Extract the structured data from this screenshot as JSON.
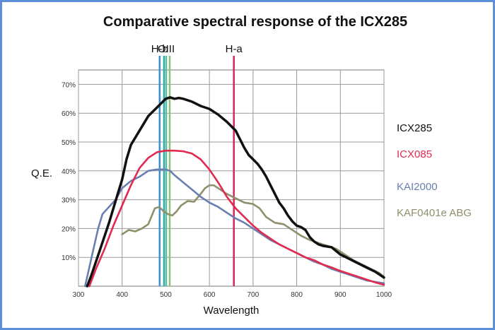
{
  "chart_data": {
    "type": "line",
    "title": "Comparative spectral response of the ICX285",
    "xlabel": "Wavelength",
    "ylabel": "Q.E.",
    "xlim": [
      300,
      1000
    ],
    "ylim": [
      0,
      75
    ],
    "x_ticks": [
      300,
      400,
      500,
      600,
      700,
      800,
      900,
      1000
    ],
    "x_tick_labels": [
      "300",
      "400",
      "500",
      "600",
      "700",
      "800",
      "900",
      "1000"
    ],
    "y_ticks": [
      10,
      20,
      30,
      40,
      50,
      60,
      70
    ],
    "y_tick_labels": [
      "10%",
      "20%",
      "30%",
      "40%",
      "50%",
      "60%",
      "70%"
    ],
    "grid": true,
    "legend_position": "right",
    "series": [
      {
        "name": "ICX285",
        "color": "#111111",
        "points": [
          [
            320,
            0
          ],
          [
            330,
            4
          ],
          [
            350,
            13
          ],
          [
            370,
            22
          ],
          [
            390,
            32
          ],
          [
            400,
            37
          ],
          [
            410,
            44
          ],
          [
            420,
            49
          ],
          [
            440,
            54
          ],
          [
            460,
            59
          ],
          [
            480,
            62
          ],
          [
            500,
            65
          ],
          [
            510,
            65.5
          ],
          [
            520,
            65
          ],
          [
            530,
            65.3
          ],
          [
            540,
            65
          ],
          [
            560,
            64
          ],
          [
            580,
            62.5
          ],
          [
            600,
            61.5
          ],
          [
            620,
            59.5
          ],
          [
            640,
            57
          ],
          [
            660,
            54
          ],
          [
            670,
            51
          ],
          [
            680,
            48
          ],
          [
            690,
            45.5
          ],
          [
            700,
            44
          ],
          [
            710,
            42.5
          ],
          [
            720,
            40.5
          ],
          [
            730,
            38
          ],
          [
            740,
            35
          ],
          [
            750,
            32
          ],
          [
            760,
            29
          ],
          [
            770,
            27
          ],
          [
            780,
            24.5
          ],
          [
            790,
            22.5
          ],
          [
            800,
            21
          ],
          [
            810,
            20.5
          ],
          [
            820,
            19.5
          ],
          [
            830,
            17
          ],
          [
            840,
            15.5
          ],
          [
            850,
            14.5
          ],
          [
            860,
            14
          ],
          [
            880,
            13.5
          ],
          [
            900,
            11
          ],
          [
            920,
            9.5
          ],
          [
            940,
            8
          ],
          [
            960,
            6.5
          ],
          [
            980,
            5
          ],
          [
            1000,
            3
          ]
        ]
      },
      {
        "name": "ICX085",
        "color": "#e02a50",
        "points": [
          [
            325,
            0
          ],
          [
            340,
            6
          ],
          [
            360,
            13
          ],
          [
            380,
            21
          ],
          [
            400,
            28
          ],
          [
            420,
            35
          ],
          [
            440,
            41
          ],
          [
            460,
            44.5
          ],
          [
            480,
            46.5
          ],
          [
            500,
            47
          ],
          [
            520,
            47
          ],
          [
            540,
            46.8
          ],
          [
            560,
            46
          ],
          [
            580,
            44
          ],
          [
            600,
            40.5
          ],
          [
            620,
            36
          ],
          [
            640,
            31
          ],
          [
            660,
            27
          ],
          [
            680,
            24
          ],
          [
            700,
            21
          ],
          [
            720,
            18.5
          ],
          [
            740,
            16.5
          ],
          [
            760,
            14.5
          ],
          [
            780,
            13
          ],
          [
            800,
            11.5
          ],
          [
            820,
            10
          ],
          [
            840,
            9
          ],
          [
            860,
            7.5
          ],
          [
            880,
            6.5
          ],
          [
            900,
            5.3
          ],
          [
            920,
            4.3
          ],
          [
            940,
            3.3
          ],
          [
            960,
            2.3
          ],
          [
            980,
            1.3
          ],
          [
            1000,
            0.5
          ]
        ]
      },
      {
        "name": "KAI2000",
        "color": "#6a7fb0",
        "points": [
          [
            315,
            0
          ],
          [
            330,
            10
          ],
          [
            345,
            20
          ],
          [
            355,
            25
          ],
          [
            370,
            27.5
          ],
          [
            385,
            30
          ],
          [
            400,
            34
          ],
          [
            420,
            36.5
          ],
          [
            440,
            38
          ],
          [
            460,
            40
          ],
          [
            480,
            40.5
          ],
          [
            500,
            40.5
          ],
          [
            510,
            40
          ],
          [
            520,
            38.5
          ],
          [
            540,
            36
          ],
          [
            560,
            33.5
          ],
          [
            580,
            31
          ],
          [
            600,
            29
          ],
          [
            620,
            27.5
          ],
          [
            640,
            25.5
          ],
          [
            660,
            23.5
          ],
          [
            680,
            22
          ],
          [
            700,
            20
          ],
          [
            720,
            18
          ],
          [
            740,
            16
          ],
          [
            760,
            14.5
          ],
          [
            780,
            13
          ],
          [
            800,
            11.5
          ],
          [
            820,
            10
          ],
          [
            840,
            8.5
          ],
          [
            860,
            7.5
          ],
          [
            880,
            6
          ],
          [
            900,
            5
          ],
          [
            920,
            4
          ],
          [
            940,
            3
          ],
          [
            960,
            2
          ],
          [
            980,
            1.5
          ],
          [
            1000,
            1
          ]
        ]
      },
      {
        "name": "KAF0401e ABG",
        "color": "#8f8f6c",
        "points": [
          [
            400,
            18
          ],
          [
            415,
            19.5
          ],
          [
            430,
            19
          ],
          [
            445,
            20
          ],
          [
            460,
            21.5
          ],
          [
            475,
            27
          ],
          [
            485,
            27.5
          ],
          [
            495,
            26
          ],
          [
            505,
            25
          ],
          [
            515,
            24.5
          ],
          [
            525,
            26
          ],
          [
            535,
            28
          ],
          [
            550,
            29.5
          ],
          [
            565,
            29.3
          ],
          [
            580,
            32
          ],
          [
            590,
            34
          ],
          [
            600,
            35
          ],
          [
            610,
            35
          ],
          [
            620,
            34
          ],
          [
            640,
            32
          ],
          [
            660,
            30.5
          ],
          [
            680,
            29
          ],
          [
            700,
            28.5
          ],
          [
            715,
            27
          ],
          [
            730,
            24
          ],
          [
            750,
            22
          ],
          [
            770,
            21.5
          ],
          [
            790,
            19.5
          ],
          [
            810,
            17.5
          ],
          [
            830,
            16
          ],
          [
            850,
            15
          ],
          [
            870,
            14
          ],
          [
            890,
            13
          ],
          [
            910,
            11
          ],
          [
            930,
            9
          ],
          [
            950,
            7.5
          ],
          [
            970,
            6
          ],
          [
            990,
            4.5
          ],
          [
            1000,
            3.3
          ]
        ]
      }
    ],
    "markers": [
      {
        "label": "H-b",
        "wavelength": 486,
        "color": "#3a8fd6"
      },
      {
        "label": "",
        "wavelength": 496,
        "color": "#2fa8b8"
      },
      {
        "label": "OIII",
        "wavelength": 501,
        "color": "#5fbf9a"
      },
      {
        "label": "",
        "wavelength": 509,
        "color": "#8fbf7a"
      },
      {
        "label": "H-a",
        "wavelength": 656,
        "color": "#d12a5a"
      }
    ]
  }
}
